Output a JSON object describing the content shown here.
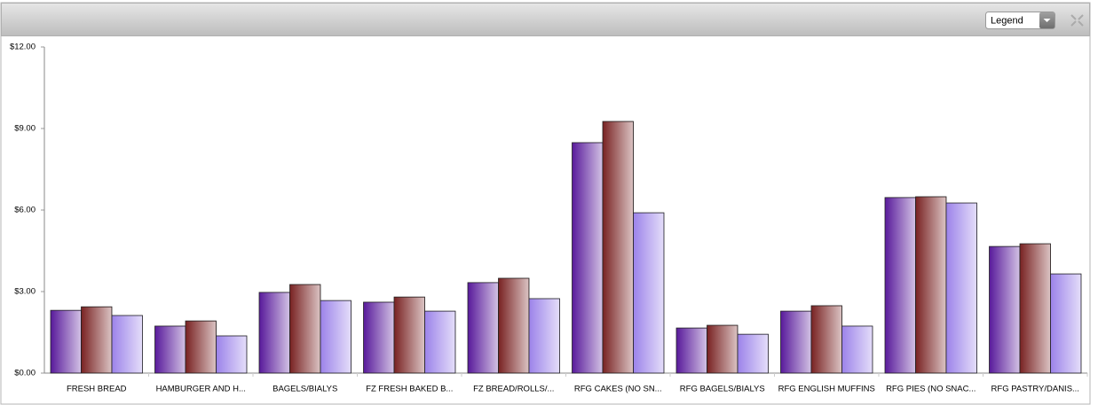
{
  "toolbar": {
    "legend_select": "Legend"
  },
  "chart_data": {
    "type": "bar",
    "categories": [
      "FRESH BREAD",
      "HAMBURGER AND H...",
      "BAGELS/BIALYS",
      "FZ FRESH BAKED B...",
      "FZ BREAD/ROLLS/...",
      "RFG CAKES (NO SN...",
      "RFG BAGELS/BIALYS",
      "RFG ENGLISH MUFFINS",
      "RFG PIES (NO SNAC...",
      "RFG PASTRY/DANIS..."
    ],
    "series": [
      {
        "color": "#5a1c9c",
        "values": [
          2.31,
          1.73,
          2.97,
          2.61,
          3.33,
          8.48,
          1.66,
          2.28,
          6.46,
          4.66
        ]
      },
      {
        "color": "#7a2424",
        "values": [
          2.44,
          1.92,
          3.26,
          2.8,
          3.49,
          9.26,
          1.76,
          2.48,
          6.49,
          4.76
        ]
      },
      {
        "color": "#9d84ea",
        "values": [
          2.12,
          1.37,
          2.67,
          2.28,
          2.74,
          5.9,
          1.43,
          1.73,
          6.26,
          3.65
        ]
      }
    ],
    "ylim": [
      0,
      12
    ],
    "yticks": [
      {
        "value": 0,
        "label": "$0.00"
      },
      {
        "value": 3,
        "label": "$3.00"
      },
      {
        "value": 6,
        "label": "$6.00"
      },
      {
        "value": 9,
        "label": "$9.00"
      },
      {
        "value": 12,
        "label": "$12.00"
      }
    ]
  }
}
